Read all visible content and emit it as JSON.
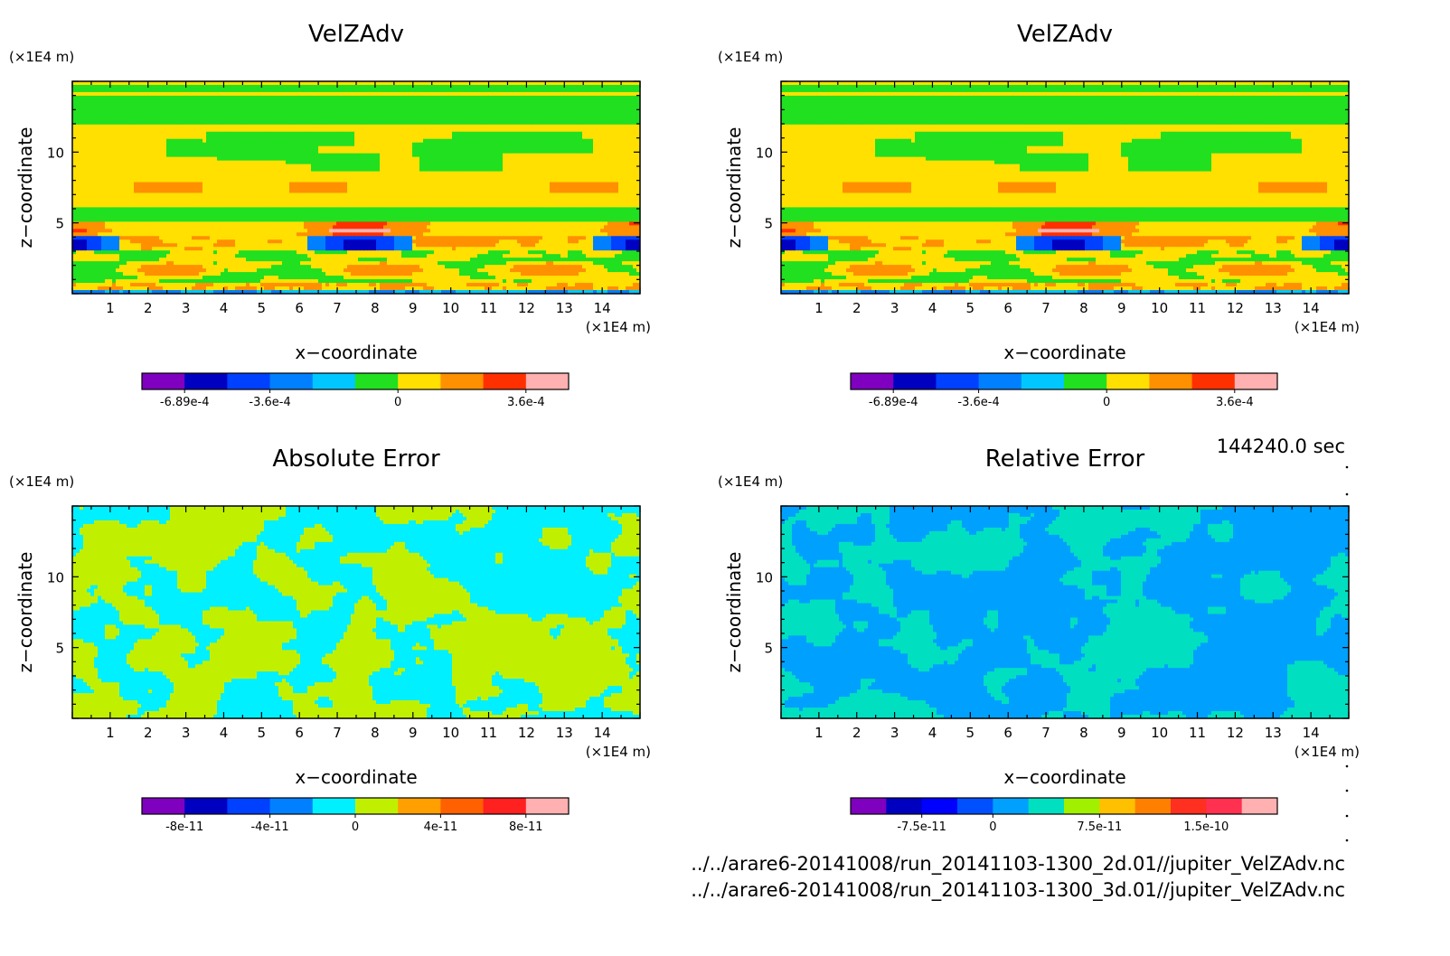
{
  "timestamp": "144240.0 sec",
  "files": [
    "../../arare6-20141008/run_20141103-1300_2d.01//jupiter_VelZAdv.nc",
    "../../arare6-20141008/run_20141103-1300_3d.01//jupiter_VelZAdv.nc"
  ],
  "chart_data": [
    {
      "type": "heatmap",
      "title": "VelZAdv",
      "xlabel": "x−coordinate",
      "ylabel": "z−coordinate",
      "x_unit": "(×1E4 m)",
      "z_unit": "(×1E4 m)",
      "xlim": [
        0,
        15
      ],
      "zlim": [
        0,
        15
      ],
      "x_ticks": [
        1,
        2,
        3,
        4,
        5,
        6,
        7,
        8,
        9,
        10,
        11,
        12,
        13,
        14
      ],
      "z_ticks": [
        5,
        10
      ],
      "colorbar": {
        "colors": [
          "#7f00bf",
          "#0000c0",
          "#0040ff",
          "#0080ff",
          "#00c8ff",
          "#20e020",
          "#ffe000",
          "#ff9000",
          "#ff3000",
          "#ffb0b0"
        ],
        "labels": [
          {
            "value": "-6.89e-4",
            "index": 1
          },
          {
            "value": "-3.6e-4",
            "index": 3
          },
          {
            "value": "0",
            "index": 6
          },
          {
            "value": "3.6e-4",
            "index": 9
          }
        ]
      }
    },
    {
      "type": "heatmap",
      "title": "VelZAdv",
      "xlabel": "x−coordinate",
      "ylabel": "z−coordinate",
      "x_unit": "(×1E4 m)",
      "z_unit": "(×1E4 m)",
      "xlim": [
        0,
        15
      ],
      "zlim": [
        0,
        15
      ],
      "x_ticks": [
        1,
        2,
        3,
        4,
        5,
        6,
        7,
        8,
        9,
        10,
        11,
        12,
        13,
        14
      ],
      "z_ticks": [
        5,
        10
      ],
      "colorbar": {
        "colors": [
          "#7f00bf",
          "#0000c0",
          "#0040ff",
          "#0080ff",
          "#00c8ff",
          "#20e020",
          "#ffe000",
          "#ff9000",
          "#ff3000",
          "#ffb0b0"
        ],
        "labels": [
          {
            "value": "-6.89e-4",
            "index": 1
          },
          {
            "value": "-3.6e-4",
            "index": 3
          },
          {
            "value": "0",
            "index": 6
          },
          {
            "value": "3.6e-4",
            "index": 9
          }
        ]
      }
    },
    {
      "type": "heatmap",
      "title": "Absolute Error",
      "xlabel": "x−coordinate",
      "ylabel": "z−coordinate",
      "x_unit": "(×1E4 m)",
      "z_unit": "(×1E4 m)",
      "xlim": [
        0,
        15
      ],
      "zlim": [
        0,
        15
      ],
      "x_ticks": [
        1,
        2,
        3,
        4,
        5,
        6,
        7,
        8,
        9,
        10,
        11,
        12,
        13,
        14
      ],
      "z_ticks": [
        5,
        10
      ],
      "colorbar": {
        "colors": [
          "#7f00bf",
          "#0000c0",
          "#0040ff",
          "#0080ff",
          "#00f0ff",
          "#c0f000",
          "#ffa000",
          "#ff6000",
          "#ff2020",
          "#ffb0b0"
        ],
        "labels": [
          {
            "value": "-8e-11",
            "index": 1
          },
          {
            "value": "-4e-11",
            "index": 3
          },
          {
            "value": "0",
            "index": 5
          },
          {
            "value": "4e-11",
            "index": 7
          },
          {
            "value": "8e-11",
            "index": 9
          }
        ]
      }
    },
    {
      "type": "heatmap",
      "title": "Relative Error",
      "xlabel": "x−coordinate",
      "ylabel": "z−coordinate",
      "x_unit": "(×1E4 m)",
      "z_unit": "(×1E4 m)",
      "xlim": [
        0,
        15
      ],
      "zlim": [
        0,
        15
      ],
      "x_ticks": [
        1,
        2,
        3,
        4,
        5,
        6,
        7,
        8,
        9,
        10,
        11,
        12,
        13,
        14
      ],
      "z_ticks": [
        5,
        10
      ],
      "colorbar": {
        "colors": [
          "#7f00bf",
          "#0000c0",
          "#0000ff",
          "#0050ff",
          "#00a0ff",
          "#00e0c0",
          "#a0f000",
          "#ffc000",
          "#ff8000",
          "#ff3020",
          "#ff3050",
          "#ffb0b0"
        ],
        "labels": [
          {
            "value": "-7.5e-11",
            "index": 2
          },
          {
            "value": "0",
            "index": 4
          },
          {
            "value": "7.5e-11",
            "index": 7
          },
          {
            "value": "1.5e-10",
            "index": 10
          }
        ]
      }
    }
  ]
}
